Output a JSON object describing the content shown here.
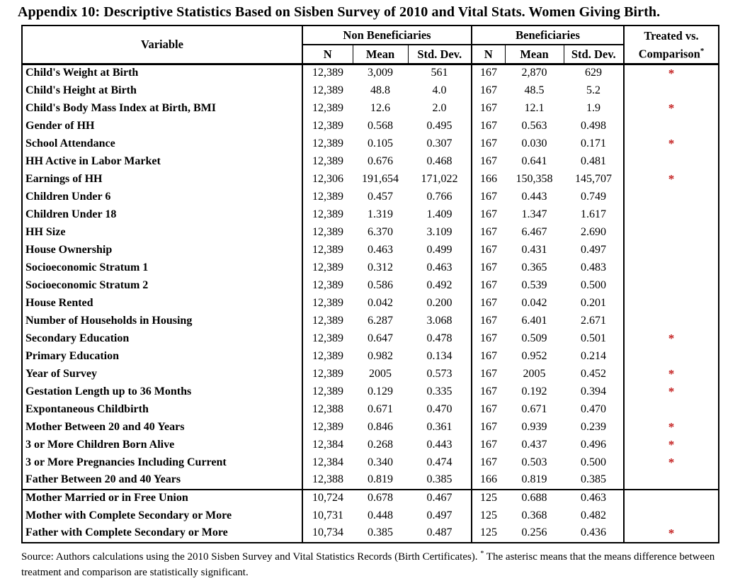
{
  "page": {
    "title": "Appendix 10: Descriptive Statistics Based on Sisben Survey of 2010 and Vital Stats. Women Giving Birth."
  },
  "table": {
    "columns": {
      "variable": "Variable",
      "non_beneficiaries": "Non Beneficiaries",
      "beneficiaries": "Beneficiaries",
      "treated_line1": "Treated vs.",
      "treated_line2": "Comparison",
      "treated_superscript": "*",
      "stat_headers": [
        "N",
        "Mean",
        "Std. Dev."
      ]
    },
    "significance_marker": "*",
    "rows": [
      {
        "variable": "Child's Weight at Birth",
        "nb": [
          "12,389",
          "3,009",
          "561"
        ],
        "b": [
          "167",
          "2,870",
          "629"
        ],
        "significant": true
      },
      {
        "variable": "Child's Height at Birth",
        "nb": [
          "12,389",
          "48.8",
          "4.0"
        ],
        "b": [
          "167",
          "48.5",
          "5.2"
        ],
        "significant": false
      },
      {
        "variable": "Child's Body Mass Index at Birth, BMI",
        "nb": [
          "12,389",
          "12.6",
          "2.0"
        ],
        "b": [
          "167",
          "12.1",
          "1.9"
        ],
        "significant": true
      },
      {
        "variable": "Gender of HH",
        "nb": [
          "12,389",
          "0.568",
          "0.495"
        ],
        "b": [
          "167",
          "0.563",
          "0.498"
        ],
        "significant": false
      },
      {
        "variable": "School Attendance",
        "nb": [
          "12,389",
          "0.105",
          "0.307"
        ],
        "b": [
          "167",
          "0.030",
          "0.171"
        ],
        "significant": true
      },
      {
        "variable": "HH Active in Labor Market",
        "nb": [
          "12,389",
          "0.676",
          "0.468"
        ],
        "b": [
          "167",
          "0.641",
          "0.481"
        ],
        "significant": false
      },
      {
        "variable": "Earnings of HH",
        "nb": [
          "12,306",
          "191,654",
          "171,022"
        ],
        "b": [
          "166",
          "150,358",
          "145,707"
        ],
        "significant": true
      },
      {
        "variable": "Children Under 6",
        "nb": [
          "12,389",
          "0.457",
          "0.766"
        ],
        "b": [
          "167",
          "0.443",
          "0.749"
        ],
        "significant": false
      },
      {
        "variable": "Children Under 18",
        "nb": [
          "12,389",
          "1.319",
          "1.409"
        ],
        "b": [
          "167",
          "1.347",
          "1.617"
        ],
        "significant": false
      },
      {
        "variable": "HH Size",
        "nb": [
          "12,389",
          "6.370",
          "3.109"
        ],
        "b": [
          "167",
          "6.467",
          "2.690"
        ],
        "significant": false
      },
      {
        "variable": "House Ownership",
        "nb": [
          "12,389",
          "0.463",
          "0.499"
        ],
        "b": [
          "167",
          "0.431",
          "0.497"
        ],
        "significant": false
      },
      {
        "variable": "Socioeconomic Stratum 1",
        "nb": [
          "12,389",
          "0.312",
          "0.463"
        ],
        "b": [
          "167",
          "0.365",
          "0.483"
        ],
        "significant": false
      },
      {
        "variable": "Socioeconomic Stratum 2",
        "nb": [
          "12,389",
          "0.586",
          "0.492"
        ],
        "b": [
          "167",
          "0.539",
          "0.500"
        ],
        "significant": false
      },
      {
        "variable": "House Rented",
        "nb": [
          "12,389",
          "0.042",
          "0.200"
        ],
        "b": [
          "167",
          "0.042",
          "0.201"
        ],
        "significant": false
      },
      {
        "variable": "Number of Households in Housing",
        "nb": [
          "12,389",
          "6.287",
          "3.068"
        ],
        "b": [
          "167",
          "6.401",
          "2.671"
        ],
        "significant": false
      },
      {
        "variable": "Secondary Education",
        "nb": [
          "12,389",
          "0.647",
          "0.478"
        ],
        "b": [
          "167",
          "0.509",
          "0.501"
        ],
        "significant": true
      },
      {
        "variable": "Primary Education",
        "nb": [
          "12,389",
          "0.982",
          "0.134"
        ],
        "b": [
          "167",
          "0.952",
          "0.214"
        ],
        "significant": false
      },
      {
        "variable": "Year of Survey",
        "nb": [
          "12,389",
          "2005",
          "0.573"
        ],
        "b": [
          "167",
          "2005",
          "0.452"
        ],
        "significant": true
      },
      {
        "variable": "Gestation Length up to 36 Months",
        "nb": [
          "12,389",
          "0.129",
          "0.335"
        ],
        "b": [
          "167",
          "0.192",
          "0.394"
        ],
        "significant": true
      },
      {
        "variable": "Expontaneous Childbirth",
        "nb": [
          "12,388",
          "0.671",
          "0.470"
        ],
        "b": [
          "167",
          "0.671",
          "0.470"
        ],
        "significant": false
      },
      {
        "variable": "Mother Between 20 and 40 Years",
        "nb": [
          "12,389",
          "0.846",
          "0.361"
        ],
        "b": [
          "167",
          "0.939",
          "0.239"
        ],
        "significant": true
      },
      {
        "variable": "3 or More Children Born Alive",
        "nb": [
          "12,384",
          "0.268",
          "0.443"
        ],
        "b": [
          "167",
          "0.437",
          "0.496"
        ],
        "significant": true
      },
      {
        "variable": "3 or More Pregnancies Including Current",
        "nb": [
          "12,384",
          "0.340",
          "0.474"
        ],
        "b": [
          "167",
          "0.503",
          "0.500"
        ],
        "significant": true
      },
      {
        "variable": "Father Between 20 and 40 Years",
        "nb": [
          "12,388",
          "0.819",
          "0.385"
        ],
        "b": [
          "166",
          "0.819",
          "0.385"
        ],
        "significant": false
      },
      {
        "variable": "Mother Married or in Free Union",
        "nb": [
          "10,724",
          "0.678",
          "0.467"
        ],
        "b": [
          "125",
          "0.688",
          "0.463"
        ],
        "significant": false,
        "section_break": true
      },
      {
        "variable": "Mother with Complete Secondary or More",
        "nb": [
          "10,731",
          "0.448",
          "0.497"
        ],
        "b": [
          "125",
          "0.368",
          "0.482"
        ],
        "significant": false
      },
      {
        "variable": "Father with Complete Secondary or More",
        "nb": [
          "10,734",
          "0.385",
          "0.487"
        ],
        "b": [
          "125",
          "0.256",
          "0.436"
        ],
        "significant": true
      }
    ]
  },
  "footnote": {
    "text_before_sup": "Source: Authors calculations using the 2010 Sisben Survey and Vital Statistics Records (Birth Certificates).",
    "superscript": "*",
    "text_after_sup": "The asterisc means that the means difference between treatment and comparison are statistically significant."
  },
  "colors": {
    "significance_red": "#c41f1f",
    "text": "#000000",
    "background": "#ffffff",
    "border": "#000000"
  }
}
